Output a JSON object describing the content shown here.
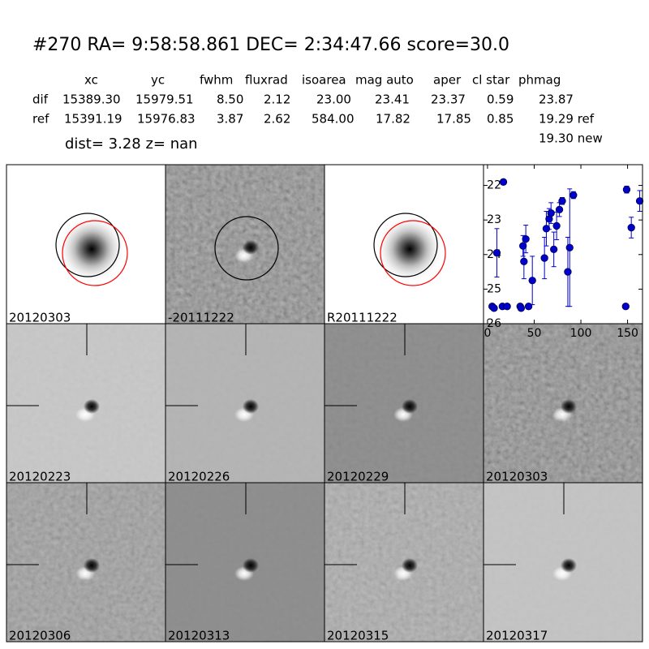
{
  "header": {
    "title": "#270   RA= 9:58:58.861 DEC= 2:34:47.66       score=30.0"
  },
  "table": {
    "columns": [
      "xc",
      "yc",
      "fwhm",
      "fluxrad",
      "isoarea",
      "mag auto",
      "aper",
      "cl star",
      "phmag"
    ],
    "rows": [
      [
        "dif",
        "15389.30",
        "15979.51",
        "8.50",
        "2.12",
        "23.00",
        "23.41",
        "23.37",
        "0.59",
        "23.87"
      ],
      [
        "ref",
        "15391.19",
        "15976.83",
        "3.87",
        "2.62",
        "584.00",
        "17.82",
        "17.85",
        "0.85",
        "19.29 ref"
      ]
    ],
    "dist_line": "dist=  3.28       z=   nan",
    "new_line": "19.30 new"
  },
  "panels": [
    {
      "label": "20120303",
      "color": "#000000"
    },
    {
      "label": "-20111222",
      "color": "#000000"
    },
    {
      "label": "R20111222",
      "color": "#000000"
    },
    {
      "label": "20120223",
      "color": "#000000"
    },
    {
      "label": "20120226",
      "color": "#000000"
    },
    {
      "label": "20120229",
      "color": "#000000"
    },
    {
      "label": "20120303",
      "color": "#ff0000"
    },
    {
      "label": "20120306",
      "color": "#000000"
    },
    {
      "label": "20120313",
      "color": "#000000"
    },
    {
      "label": "20120315",
      "color": "#000000"
    },
    {
      "label": "20120317",
      "color": "#000000"
    }
  ],
  "chart_data": {
    "type": "errorbar",
    "x": [
      5,
      7,
      16,
      21,
      35,
      36,
      44,
      10,
      17,
      38,
      39,
      41,
      48,
      61,
      63,
      66,
      68,
      71,
      74,
      77,
      80,
      86,
      88,
      92,
      148,
      149,
      154,
      163
    ],
    "series": [
      {
        "color": "#0000cc",
        "values": [
          25.5,
          25.55,
          25.5,
          25.5,
          25.5,
          25.55,
          25.5,
          23.95,
          21.9,
          23.75,
          24.2,
          23.55,
          24.75,
          24.1,
          23.25,
          22.97,
          22.8,
          23.85,
          23.17,
          22.7,
          22.45,
          24.5,
          23.8,
          22.28,
          25.5,
          22.12,
          23.22,
          22.45
        ],
        "errors": [
          0.05,
          0.05,
          0.05,
          0.05,
          0.05,
          0.05,
          0.05,
          0.7,
          0.05,
          0.3,
          0.5,
          0.4,
          0.7,
          0.6,
          0.5,
          0.3,
          0.3,
          0.5,
          0.4,
          0.2,
          0.1,
          1.0,
          1.7,
          0.1,
          0.05,
          0.1,
          0.3,
          0.3
        ]
      }
    ],
    "xlim": [
      -4.3,
      166
    ],
    "ylim": [
      26,
      21.4
    ],
    "xticks": [
      0,
      50,
      100,
      150
    ],
    "yticks": [
      22,
      23,
      24,
      25,
      26
    ]
  }
}
